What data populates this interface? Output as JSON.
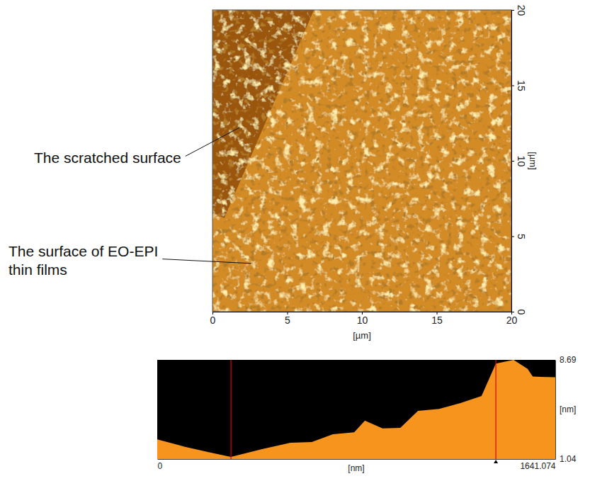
{
  "chart_data": [
    {
      "type": "image",
      "x_label": "[µm]",
      "y_label": "[µm]",
      "xlim": [
        0,
        20
      ],
      "ylim": [
        0,
        20
      ],
      "xticks": [
        0,
        5,
        10,
        15,
        20
      ],
      "yticks": [
        0,
        5,
        10,
        15,
        20
      ],
      "scratch_band": {
        "x": [
          0,
          0,
          6.8,
          0.8
        ],
        "y": [
          6.5,
          20,
          20,
          6.2
        ]
      },
      "annotations": [
        {
          "text": "The scratched surface",
          "x": 1.8,
          "y": 12.2
        },
        {
          "text": "The surface of EO-EPI thin films",
          "x": 2.6,
          "y": 3.2
        }
      ]
    },
    {
      "type": "area",
      "x_label": "[nm]",
      "y_label": "[nm]",
      "xlim": [
        0,
        1641.074
      ],
      "ylim": [
        1.04,
        8.69
      ],
      "xticks": [
        0,
        1641.074
      ],
      "yticks": [
        1.04,
        8.69
      ],
      "color": "#f7941d",
      "x": [
        0,
        111,
        228,
        304,
        432,
        549,
        637,
        724,
        812,
        856,
        929,
        1002,
        1075,
        1162,
        1250,
        1337,
        1396,
        1469,
        1527,
        1548,
        1641
      ],
      "values": [
        2.55,
        2.0,
        1.5,
        1.2,
        1.8,
        2.3,
        2.35,
        2.95,
        3.1,
        4.0,
        3.4,
        3.45,
        4.75,
        4.9,
        5.35,
        5.9,
        8.4,
        8.69,
        8.0,
        7.4,
        7.35
      ],
      "cursors": [
        304,
        1396
      ]
    }
  ]
}
